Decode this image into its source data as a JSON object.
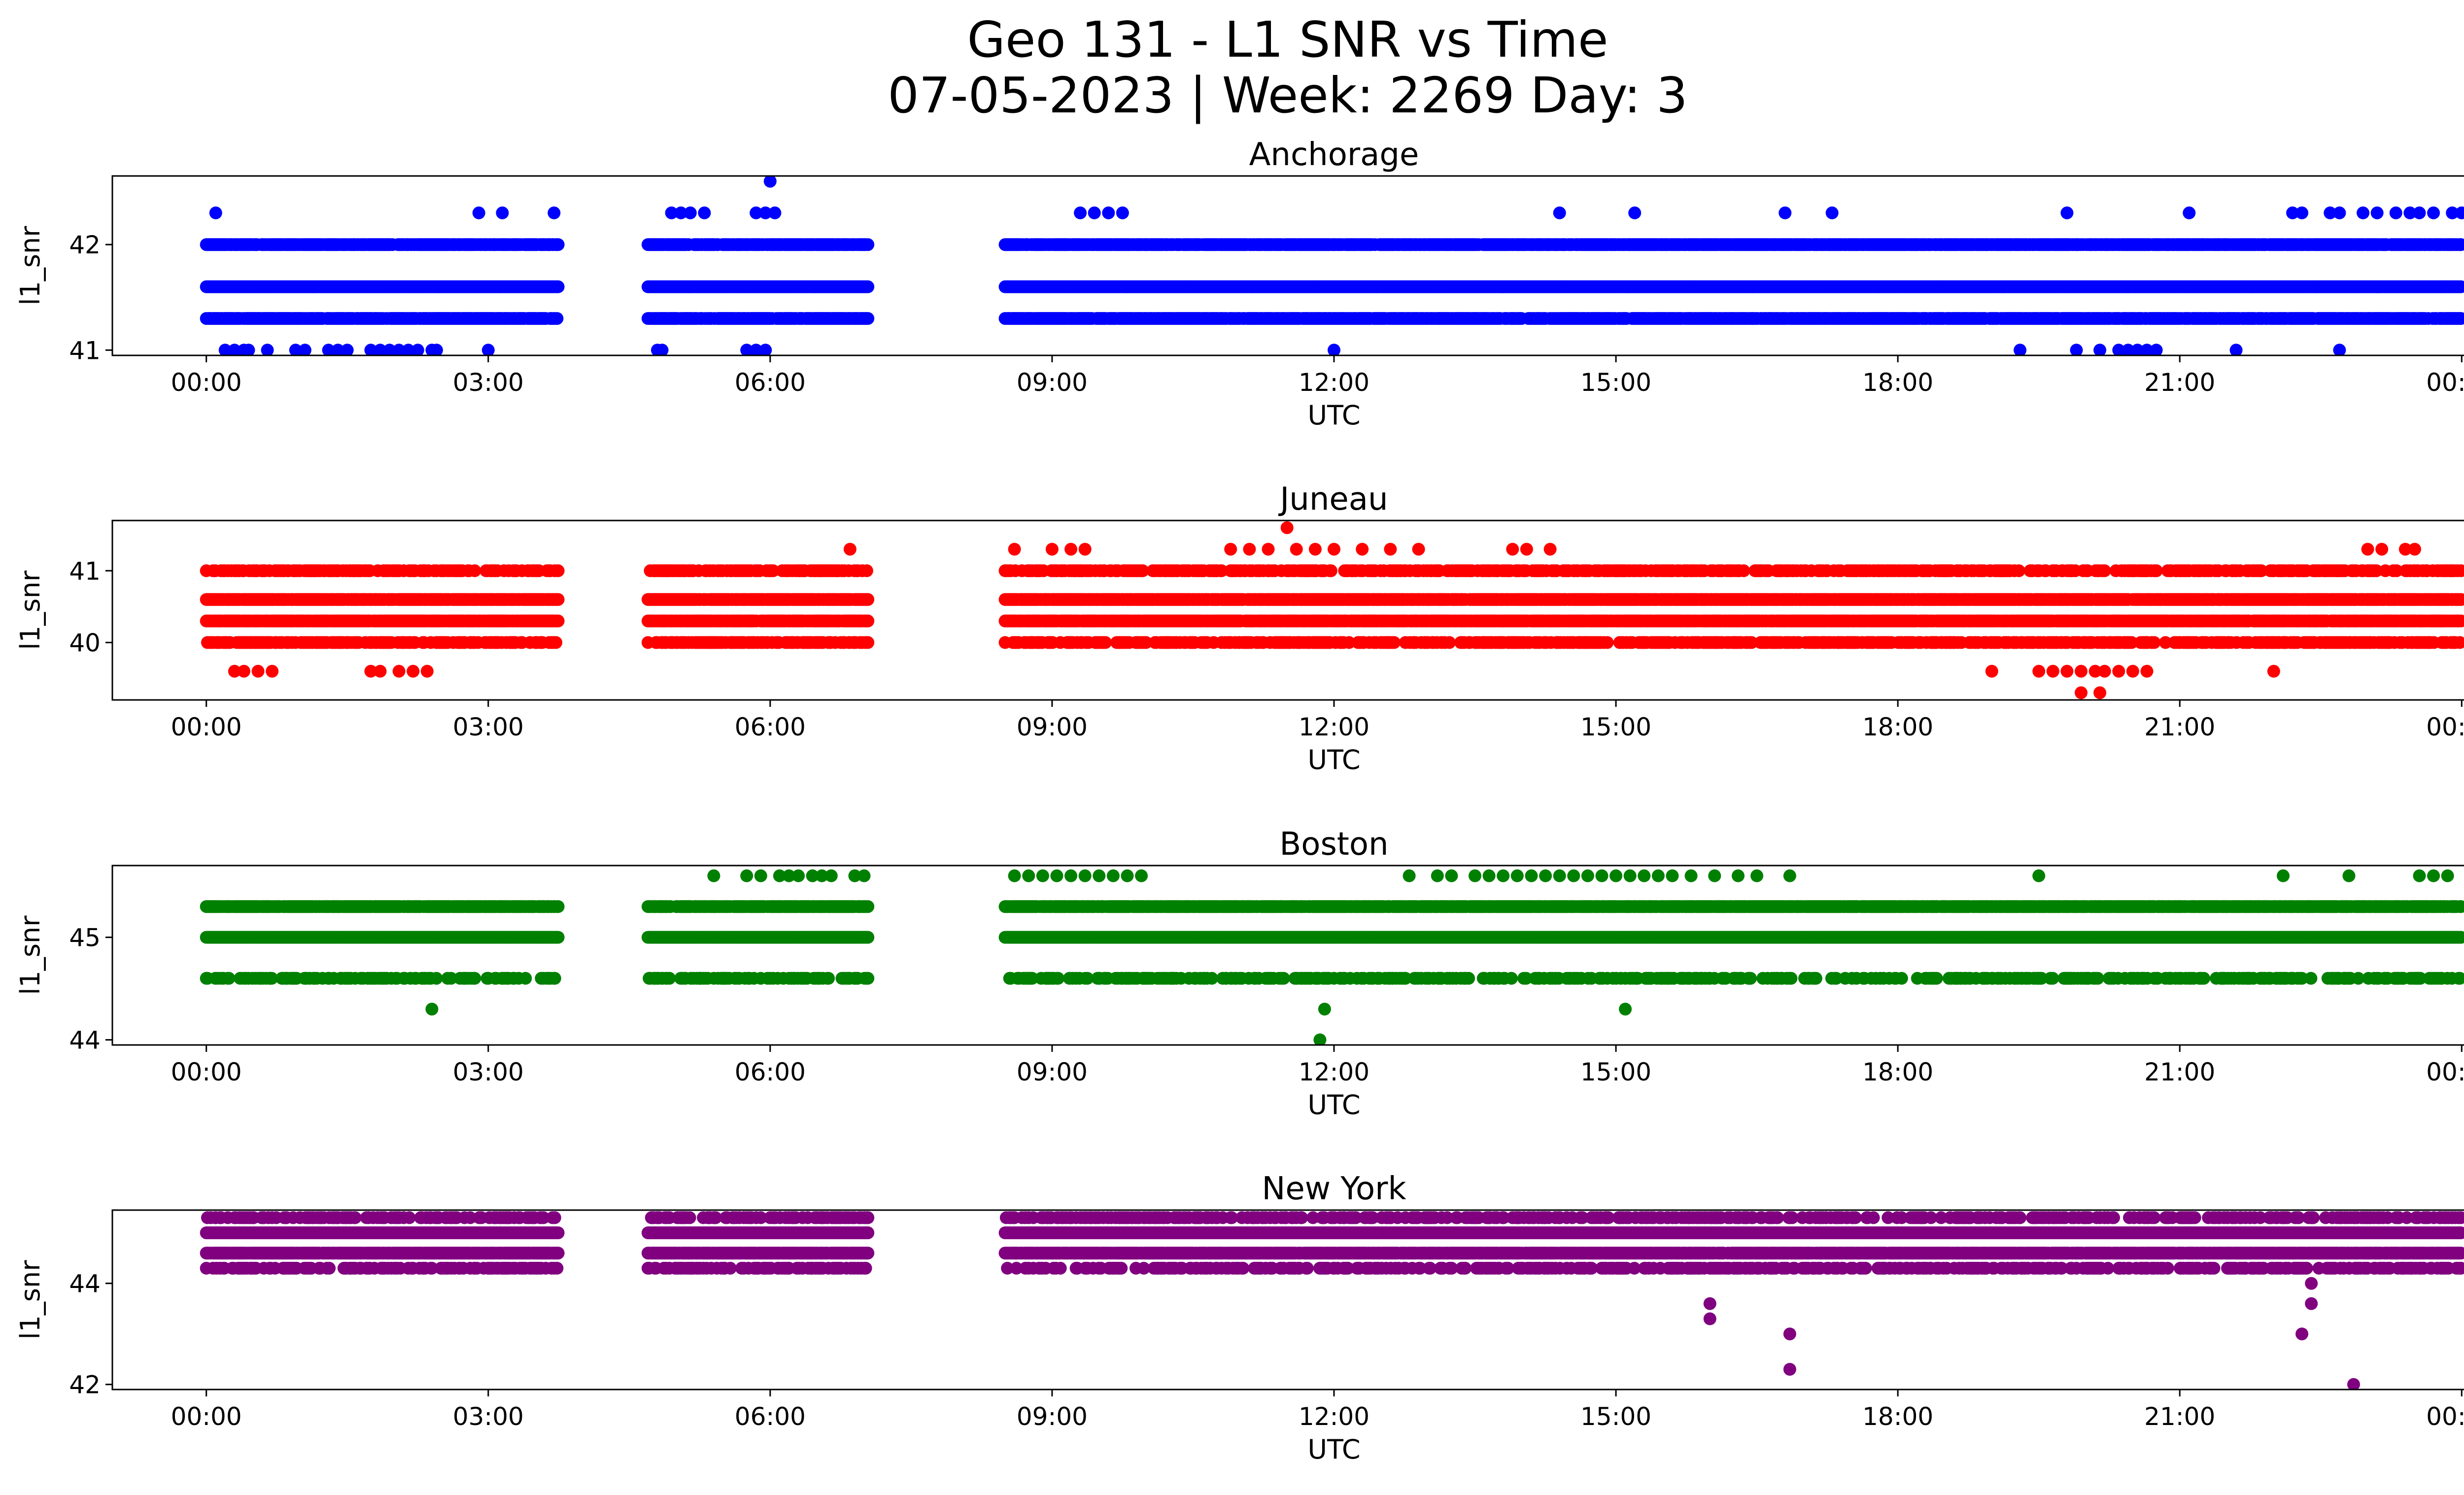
{
  "figure": {
    "title_line1": "Geo 131 - L1 SNR vs Time",
    "title_line2": "07-05-2023 | Week: 2269 Day: 3"
  },
  "chart_data": [
    {
      "type": "scatter",
      "title": "Anchorage",
      "xlabel": "UTC",
      "ylabel": "l1_snr",
      "color": "#0000ff",
      "xlim": [
        -1.0,
        25.0
      ],
      "ylim": [
        40.95,
        42.65
      ],
      "xticks": [
        "00:00",
        "03:00",
        "06:00",
        "09:00",
        "12:00",
        "15:00",
        "18:00",
        "21:00",
        "00:00"
      ],
      "yticks": [
        41,
        42
      ],
      "segments": [
        [
          0.0,
          3.75
        ],
        [
          4.7,
          7.05
        ],
        [
          8.5,
          24.0
        ]
      ],
      "bands": [
        {
          "y": 42.0,
          "density": 0.85
        },
        {
          "y": 41.6,
          "density": 1.0
        },
        {
          "y": 41.3,
          "density": 0.8
        }
      ],
      "points": [
        [
          0.1,
          42.3
        ],
        [
          2.9,
          42.3
        ],
        [
          3.15,
          42.3
        ],
        [
          3.7,
          42.3
        ],
        [
          4.95,
          42.3
        ],
        [
          5.05,
          42.3
        ],
        [
          5.15,
          42.3
        ],
        [
          5.3,
          42.3
        ],
        [
          5.85,
          42.3
        ],
        [
          5.95,
          42.3
        ],
        [
          6.05,
          42.3
        ],
        [
          6.0,
          42.6
        ],
        [
          9.3,
          42.3
        ],
        [
          9.45,
          42.3
        ],
        [
          9.6,
          42.3
        ],
        [
          9.75,
          42.3
        ],
        [
          14.4,
          42.3
        ],
        [
          15.2,
          42.3
        ],
        [
          16.8,
          42.3
        ],
        [
          17.3,
          42.3
        ],
        [
          19.8,
          42.3
        ],
        [
          21.1,
          42.3
        ],
        [
          22.2,
          42.3
        ],
        [
          22.3,
          42.3
        ],
        [
          22.6,
          42.3
        ],
        [
          22.7,
          42.3
        ],
        [
          22.95,
          42.3
        ],
        [
          23.1,
          42.3
        ],
        [
          23.3,
          42.3
        ],
        [
          23.45,
          42.3
        ],
        [
          23.55,
          42.3
        ],
        [
          23.7,
          42.3
        ],
        [
          23.9,
          42.3
        ],
        [
          24.0,
          42.3
        ],
        [
          0.2,
          41.0
        ],
        [
          0.3,
          41.0
        ],
        [
          0.4,
          41.0
        ],
        [
          0.45,
          41.0
        ],
        [
          0.65,
          41.0
        ],
        [
          0.95,
          41.0
        ],
        [
          1.05,
          41.0
        ],
        [
          1.3,
          41.0
        ],
        [
          1.4,
          41.0
        ],
        [
          1.5,
          41.0
        ],
        [
          1.75,
          41.0
        ],
        [
          1.85,
          41.0
        ],
        [
          1.95,
          41.0
        ],
        [
          2.05,
          41.0
        ],
        [
          2.15,
          41.0
        ],
        [
          2.25,
          41.0
        ],
        [
          2.4,
          41.0
        ],
        [
          2.45,
          41.0
        ],
        [
          3.0,
          41.0
        ],
        [
          4.8,
          41.0
        ],
        [
          4.85,
          41.0
        ],
        [
          5.75,
          41.0
        ],
        [
          5.85,
          41.0
        ],
        [
          5.95,
          41.0
        ],
        [
          12.0,
          41.0
        ],
        [
          19.3,
          41.0
        ],
        [
          19.9,
          41.0
        ],
        [
          20.15,
          41.0
        ],
        [
          20.35,
          41.0
        ],
        [
          20.45,
          41.0
        ],
        [
          20.55,
          41.0
        ],
        [
          20.65,
          41.0
        ],
        [
          20.75,
          41.0
        ],
        [
          21.6,
          41.0
        ],
        [
          22.7,
          41.0
        ]
      ]
    },
    {
      "type": "scatter",
      "title": "Juneau",
      "xlabel": "UTC",
      "ylabel": "l1_snr",
      "color": "#ff0000",
      "xlim": [
        -1.0,
        25.0
      ],
      "ylim": [
        39.2,
        41.7
      ],
      "xticks": [
        "00:00",
        "03:00",
        "06:00",
        "09:00",
        "12:00",
        "15:00",
        "18:00",
        "21:00",
        "00:00"
      ],
      "yticks": [
        40,
        41
      ],
      "segments": [
        [
          0.0,
          3.75
        ],
        [
          4.7,
          7.05
        ],
        [
          8.5,
          24.0
        ]
      ],
      "bands": [
        {
          "y": 41.0,
          "density": 0.45
        },
        {
          "y": 40.6,
          "density": 0.9
        },
        {
          "y": 40.3,
          "density": 0.9
        },
        {
          "y": 40.0,
          "density": 0.45
        }
      ],
      "points": [
        [
          0.15,
          40.6
        ],
        [
          0.95,
          41.0
        ],
        [
          1.15,
          41.0
        ],
        [
          1.3,
          41.0
        ],
        [
          6.0,
          41.0
        ],
        [
          6.2,
          41.0
        ],
        [
          6.35,
          41.0
        ],
        [
          6.85,
          41.3
        ],
        [
          8.6,
          41.3
        ],
        [
          9.0,
          41.3
        ],
        [
          9.2,
          41.3
        ],
        [
          9.35,
          41.3
        ],
        [
          11.5,
          41.6
        ],
        [
          10.9,
          41.3
        ],
        [
          11.1,
          41.3
        ],
        [
          11.3,
          41.3
        ],
        [
          11.6,
          41.3
        ],
        [
          11.8,
          41.3
        ],
        [
          12.0,
          41.3
        ],
        [
          12.3,
          41.3
        ],
        [
          12.6,
          41.3
        ],
        [
          12.9,
          41.3
        ],
        [
          13.9,
          41.3
        ],
        [
          14.05,
          41.3
        ],
        [
          14.3,
          41.3
        ],
        [
          23.0,
          41.3
        ],
        [
          23.15,
          41.3
        ],
        [
          23.4,
          41.3
        ],
        [
          23.5,
          41.3
        ],
        [
          0.3,
          39.6
        ],
        [
          0.4,
          39.6
        ],
        [
          0.55,
          39.6
        ],
        [
          0.7,
          39.6
        ],
        [
          1.75,
          39.6
        ],
        [
          1.85,
          39.6
        ],
        [
          2.05,
          39.6
        ],
        [
          2.2,
          39.6
        ],
        [
          2.35,
          39.6
        ],
        [
          19.0,
          39.6
        ],
        [
          19.5,
          39.6
        ],
        [
          19.65,
          39.6
        ],
        [
          19.8,
          39.6
        ],
        [
          19.95,
          39.6
        ],
        [
          20.1,
          39.6
        ],
        [
          20.2,
          39.6
        ],
        [
          20.35,
          39.6
        ],
        [
          20.5,
          39.6
        ],
        [
          20.65,
          39.6
        ],
        [
          22.0,
          39.6
        ],
        [
          19.95,
          39.3
        ],
        [
          20.15,
          39.3
        ],
        [
          17.2,
          40.0
        ],
        [
          17.5,
          40.0
        ],
        [
          18.1,
          40.0
        ],
        [
          18.4,
          40.0
        ],
        [
          20.7,
          40.0
        ],
        [
          21.4,
          40.0
        ],
        [
          22.4,
          40.0
        ],
        [
          22.8,
          40.0
        ],
        [
          19.15,
          41.0
        ],
        [
          19.85,
          41.0
        ],
        [
          20.5,
          41.0
        ],
        [
          21.0,
          41.0
        ],
        [
          21.2,
          41.0
        ],
        [
          17.7,
          41.0
        ],
        [
          17.8,
          41.0
        ]
      ]
    },
    {
      "type": "scatter",
      "title": "Boston",
      "xlabel": "UTC",
      "ylabel": "l1_snr",
      "color": "#008000",
      "xlim": [
        -1.0,
        25.0
      ],
      "ylim": [
        43.95,
        45.7
      ],
      "xticks": [
        "00:00",
        "03:00",
        "06:00",
        "09:00",
        "12:00",
        "15:00",
        "18:00",
        "21:00",
        "00:00"
      ],
      "yticks": [
        44,
        45
      ],
      "segments": [
        [
          0.0,
          3.75
        ],
        [
          4.7,
          7.05
        ],
        [
          8.5,
          24.0
        ]
      ],
      "bands": [
        {
          "y": 45.3,
          "density": 0.85
        },
        {
          "y": 45.0,
          "density": 1.0
        },
        {
          "y": 44.6,
          "density": 0.35
        }
      ],
      "points": [
        [
          5.4,
          45.6
        ],
        [
          5.75,
          45.6
        ],
        [
          5.9,
          45.6
        ],
        [
          6.1,
          45.6
        ],
        [
          6.2,
          45.6
        ],
        [
          6.3,
          45.6
        ],
        [
          6.45,
          45.6
        ],
        [
          6.55,
          45.6
        ],
        [
          6.65,
          45.6
        ],
        [
          6.9,
          45.6
        ],
        [
          7.0,
          45.6
        ],
        [
          8.6,
          45.6
        ],
        [
          8.75,
          45.6
        ],
        [
          8.9,
          45.6
        ],
        [
          9.05,
          45.6
        ],
        [
          9.2,
          45.6
        ],
        [
          9.35,
          45.6
        ],
        [
          9.5,
          45.6
        ],
        [
          9.65,
          45.6
        ],
        [
          9.8,
          45.6
        ],
        [
          9.95,
          45.6
        ],
        [
          12.8,
          45.6
        ],
        [
          13.1,
          45.6
        ],
        [
          13.25,
          45.6
        ],
        [
          13.5,
          45.6
        ],
        [
          13.65,
          45.6
        ],
        [
          13.8,
          45.6
        ],
        [
          13.95,
          45.6
        ],
        [
          14.1,
          45.6
        ],
        [
          14.25,
          45.6
        ],
        [
          14.4,
          45.6
        ],
        [
          14.55,
          45.6
        ],
        [
          14.7,
          45.6
        ],
        [
          14.85,
          45.6
        ],
        [
          15.0,
          45.6
        ],
        [
          15.15,
          45.6
        ],
        [
          15.3,
          45.6
        ],
        [
          15.45,
          45.6
        ],
        [
          15.6,
          45.6
        ],
        [
          15.8,
          45.6
        ],
        [
          16.05,
          45.6
        ],
        [
          16.3,
          45.6
        ],
        [
          16.5,
          45.6
        ],
        [
          16.85,
          45.6
        ],
        [
          19.5,
          45.6
        ],
        [
          22.1,
          45.6
        ],
        [
          22.8,
          45.6
        ],
        [
          23.55,
          45.6
        ],
        [
          23.7,
          45.6
        ],
        [
          23.85,
          45.6
        ],
        [
          0.45,
          44.6
        ],
        [
          0.95,
          44.6
        ],
        [
          1.1,
          44.6
        ],
        [
          1.3,
          44.6
        ],
        [
          1.5,
          44.6
        ],
        [
          2.4,
          44.3
        ],
        [
          4.8,
          44.6
        ],
        [
          4.9,
          44.6
        ],
        [
          5.1,
          44.6
        ],
        [
          5.25,
          44.6
        ],
        [
          5.4,
          44.6
        ],
        [
          8.65,
          44.6
        ],
        [
          10.7,
          44.6
        ],
        [
          10.85,
          44.6
        ],
        [
          11.0,
          44.6
        ],
        [
          11.3,
          44.6
        ],
        [
          11.65,
          44.6
        ],
        [
          11.8,
          44.6
        ],
        [
          12.0,
          44.6
        ],
        [
          12.4,
          44.6
        ],
        [
          13.4,
          44.6
        ],
        [
          11.9,
          44.3
        ],
        [
          11.85,
          44.0
        ],
        [
          15.1,
          44.3
        ],
        [
          8.8,
          45.0
        ],
        [
          9.0,
          45.0
        ],
        [
          9.15,
          45.0
        ],
        [
          23.1,
          44.6
        ]
      ]
    },
    {
      "type": "scatter",
      "title": "New York",
      "xlabel": "UTC",
      "ylabel": "l1_snr",
      "color": "#800080",
      "xlim": [
        -1.0,
        25.0
      ],
      "ylim": [
        41.9,
        45.45
      ],
      "xticks": [
        "00:00",
        "03:00",
        "06:00",
        "09:00",
        "12:00",
        "15:00",
        "18:00",
        "21:00",
        "00:00"
      ],
      "yticks": [
        42,
        44
      ],
      "segments": [
        [
          0.0,
          3.75
        ],
        [
          4.7,
          7.05
        ],
        [
          8.5,
          24.0
        ]
      ],
      "bands": [
        {
          "y": 45.3,
          "density": 0.35
        },
        {
          "y": 45.0,
          "density": 1.0
        },
        {
          "y": 44.6,
          "density": 0.9
        },
        {
          "y": 44.3,
          "density": 0.35
        }
      ],
      "points": [
        [
          0.1,
          45.3
        ],
        [
          0.3,
          45.3
        ],
        [
          0.5,
          45.3
        ],
        [
          0.7,
          45.3
        ],
        [
          0.85,
          45.3
        ],
        [
          1.1,
          45.3
        ],
        [
          1.25,
          45.3
        ],
        [
          4.9,
          45.3
        ],
        [
          5.4,
          45.3
        ],
        [
          5.6,
          45.3
        ],
        [
          5.8,
          45.3
        ],
        [
          6.0,
          45.3
        ],
        [
          6.2,
          45.3
        ],
        [
          6.4,
          45.3
        ],
        [
          6.7,
          45.3
        ],
        [
          7.0,
          45.3
        ],
        [
          8.6,
          45.3
        ],
        [
          8.9,
          45.3
        ],
        [
          9.2,
          45.3
        ],
        [
          9.5,
          45.3
        ],
        [
          9.8,
          45.3
        ],
        [
          10.1,
          45.3
        ],
        [
          10.4,
          45.3
        ],
        [
          10.7,
          45.3
        ],
        [
          13.0,
          45.3
        ],
        [
          13.4,
          45.3
        ],
        [
          16.0,
          45.3
        ],
        [
          21.1,
          45.3
        ],
        [
          22.1,
          45.3
        ],
        [
          22.4,
          45.3
        ],
        [
          22.7,
          45.3
        ],
        [
          23.0,
          45.3
        ],
        [
          23.3,
          45.3
        ],
        [
          23.6,
          45.3
        ],
        [
          23.9,
          45.3
        ],
        [
          2.2,
          44.3
        ],
        [
          2.4,
          44.3
        ],
        [
          2.55,
          44.3
        ],
        [
          2.7,
          44.3
        ],
        [
          2.85,
          44.3
        ],
        [
          3.0,
          44.3
        ],
        [
          3.7,
          44.3
        ],
        [
          11.9,
          44.3
        ],
        [
          15.4,
          44.3
        ],
        [
          15.8,
          44.3
        ],
        [
          15.9,
          44.3
        ],
        [
          16.1,
          44.3
        ],
        [
          16.5,
          44.3
        ],
        [
          16.7,
          44.3
        ],
        [
          16.9,
          44.3
        ],
        [
          17.1,
          44.3
        ],
        [
          17.35,
          44.3
        ],
        [
          17.6,
          44.3
        ],
        [
          17.85,
          44.3
        ],
        [
          18.1,
          44.3
        ],
        [
          18.35,
          44.3
        ],
        [
          18.6,
          44.3
        ],
        [
          18.85,
          44.3
        ],
        [
          19.1,
          44.3
        ],
        [
          19.35,
          44.3
        ],
        [
          19.6,
          44.3
        ],
        [
          19.85,
          44.3
        ],
        [
          20.1,
          44.3
        ],
        [
          20.35,
          44.3
        ],
        [
          20.6,
          44.3
        ],
        [
          21.1,
          44.3
        ],
        [
          21.2,
          44.3
        ],
        [
          21.7,
          44.3
        ],
        [
          22.35,
          44.3
        ],
        [
          22.65,
          44.3
        ],
        [
          22.8,
          44.3
        ],
        [
          16.0,
          43.6
        ],
        [
          16.0,
          43.3
        ],
        [
          16.85,
          43.0
        ],
        [
          16.85,
          42.3
        ],
        [
          22.3,
          43.0
        ],
        [
          22.4,
          43.6
        ],
        [
          22.4,
          44.0
        ],
        [
          22.85,
          42.0
        ]
      ]
    }
  ]
}
